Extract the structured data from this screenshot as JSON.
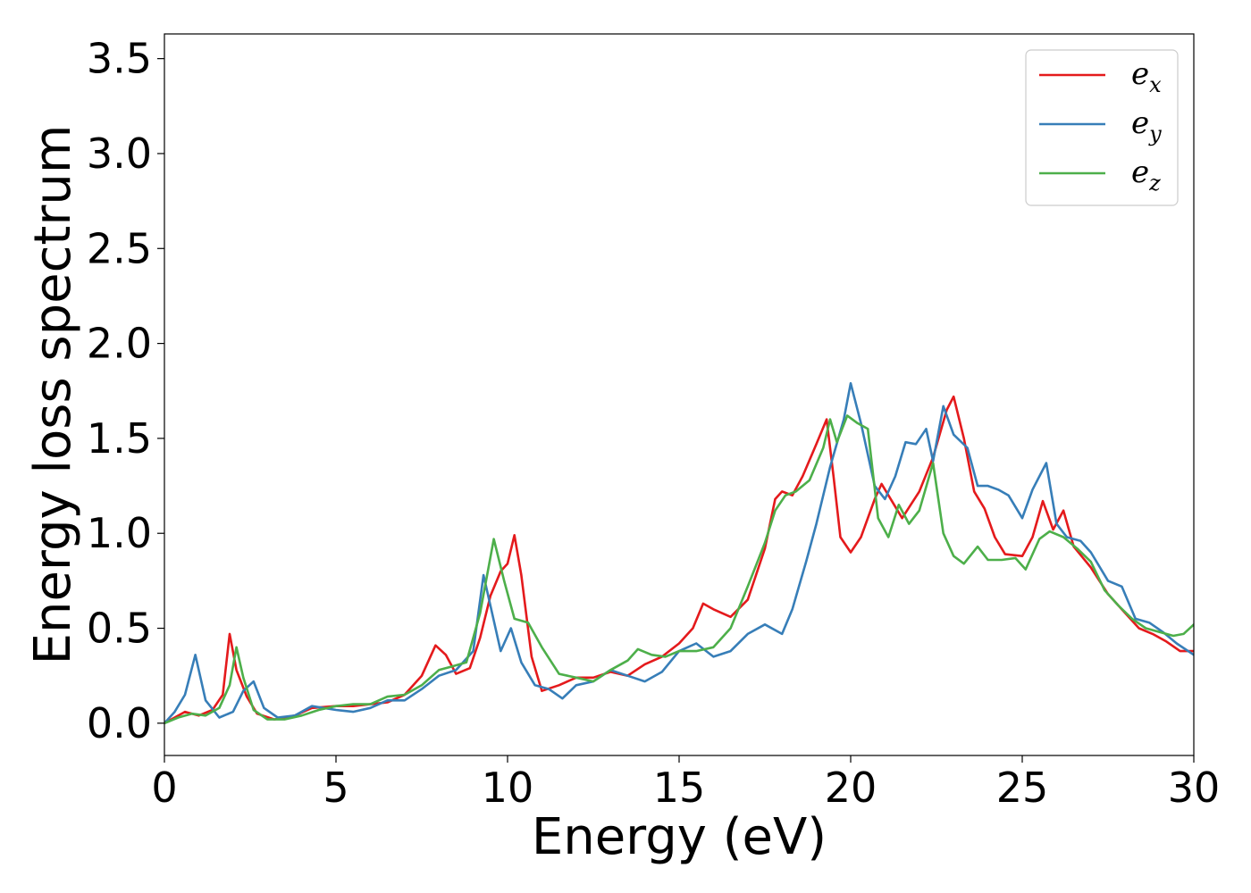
{
  "chart_data": {
    "type": "line",
    "title": "",
    "xlabel": "Energy (eV)",
    "ylabel": "Energy loss spectrum",
    "xlim": [
      0,
      30
    ],
    "ylim": [
      -0.17,
      3.63
    ],
    "xticks": [
      0,
      5,
      10,
      15,
      20,
      25,
      30
    ],
    "xtick_labels": [
      "0",
      "5",
      "10",
      "15",
      "20",
      "25",
      "30"
    ],
    "yticks": [
      0.0,
      0.5,
      1.0,
      1.5,
      2.0,
      2.5,
      3.0,
      3.5
    ],
    "ytick_labels": [
      "0.0",
      "0.5",
      "1.0",
      "1.5",
      "2.0",
      "2.5",
      "3.0",
      "3.5"
    ],
    "grid": false,
    "legend_position": "top-right",
    "series": [
      {
        "name": "e",
        "subscript": "x",
        "color": "#e41a1c",
        "points": [
          [
            0,
            0
          ],
          [
            0.3,
            0.03
          ],
          [
            0.6,
            0.06
          ],
          [
            1.0,
            0.04
          ],
          [
            1.4,
            0.07
          ],
          [
            1.7,
            0.15
          ],
          [
            1.9,
            0.47
          ],
          [
            2.1,
            0.28
          ],
          [
            2.4,
            0.14
          ],
          [
            2.7,
            0.05
          ],
          [
            3.2,
            0.02
          ],
          [
            3.8,
            0.04
          ],
          [
            4.3,
            0.08
          ],
          [
            5.0,
            0.09
          ],
          [
            5.5,
            0.09
          ],
          [
            6.0,
            0.1
          ],
          [
            6.5,
            0.11
          ],
          [
            7.0,
            0.15
          ],
          [
            7.5,
            0.25
          ],
          [
            7.9,
            0.41
          ],
          [
            8.2,
            0.36
          ],
          [
            8.5,
            0.26
          ],
          [
            8.9,
            0.29
          ],
          [
            9.2,
            0.45
          ],
          [
            9.5,
            0.67
          ],
          [
            9.8,
            0.8
          ],
          [
            10.0,
            0.84
          ],
          [
            10.2,
            0.99
          ],
          [
            10.4,
            0.78
          ],
          [
            10.7,
            0.35
          ],
          [
            11.0,
            0.17
          ],
          [
            11.5,
            0.2
          ],
          [
            12.0,
            0.24
          ],
          [
            12.5,
            0.24
          ],
          [
            13.0,
            0.27
          ],
          [
            13.5,
            0.25
          ],
          [
            14.0,
            0.31
          ],
          [
            14.5,
            0.35
          ],
          [
            15.0,
            0.42
          ],
          [
            15.4,
            0.5
          ],
          [
            15.7,
            0.63
          ],
          [
            16.0,
            0.6
          ],
          [
            16.5,
            0.56
          ],
          [
            17.0,
            0.65
          ],
          [
            17.5,
            0.92
          ],
          [
            17.8,
            1.18
          ],
          [
            18.0,
            1.22
          ],
          [
            18.3,
            1.2
          ],
          [
            18.6,
            1.3
          ],
          [
            19.0,
            1.47
          ],
          [
            19.3,
            1.6
          ],
          [
            19.5,
            1.3
          ],
          [
            19.7,
            0.98
          ],
          [
            20.0,
            0.9
          ],
          [
            20.3,
            0.98
          ],
          [
            20.7,
            1.18
          ],
          [
            20.9,
            1.26
          ],
          [
            21.2,
            1.17
          ],
          [
            21.5,
            1.08
          ],
          [
            22.0,
            1.22
          ],
          [
            22.4,
            1.4
          ],
          [
            22.8,
            1.65
          ],
          [
            23.0,
            1.72
          ],
          [
            23.3,
            1.5
          ],
          [
            23.6,
            1.22
          ],
          [
            23.9,
            1.13
          ],
          [
            24.2,
            0.98
          ],
          [
            24.5,
            0.89
          ],
          [
            25.0,
            0.88
          ],
          [
            25.3,
            0.98
          ],
          [
            25.6,
            1.17
          ],
          [
            25.9,
            1.02
          ],
          [
            26.2,
            1.12
          ],
          [
            26.5,
            0.93
          ],
          [
            27.0,
            0.82
          ],
          [
            27.5,
            0.68
          ],
          [
            28.0,
            0.58
          ],
          [
            28.4,
            0.5
          ],
          [
            28.8,
            0.47
          ],
          [
            29.2,
            0.43
          ],
          [
            29.6,
            0.38
          ],
          [
            30.0,
            0.38
          ]
        ]
      },
      {
        "name": "e",
        "subscript": "y",
        "color": "#377eb8",
        "points": [
          [
            0,
            0
          ],
          [
            0.3,
            0.06
          ],
          [
            0.6,
            0.15
          ],
          [
            0.9,
            0.36
          ],
          [
            1.2,
            0.12
          ],
          [
            1.6,
            0.03
          ],
          [
            2.0,
            0.06
          ],
          [
            2.3,
            0.17
          ],
          [
            2.6,
            0.22
          ],
          [
            2.9,
            0.08
          ],
          [
            3.3,
            0.03
          ],
          [
            3.8,
            0.04
          ],
          [
            4.3,
            0.09
          ],
          [
            5.0,
            0.07
          ],
          [
            5.5,
            0.06
          ],
          [
            6.0,
            0.08
          ],
          [
            6.5,
            0.12
          ],
          [
            7.0,
            0.12
          ],
          [
            7.5,
            0.18
          ],
          [
            8.0,
            0.25
          ],
          [
            8.5,
            0.28
          ],
          [
            9.0,
            0.38
          ],
          [
            9.3,
            0.78
          ],
          [
            9.5,
            0.62
          ],
          [
            9.8,
            0.38
          ],
          [
            10.1,
            0.5
          ],
          [
            10.4,
            0.32
          ],
          [
            10.8,
            0.2
          ],
          [
            11.2,
            0.18
          ],
          [
            11.6,
            0.13
          ],
          [
            12.0,
            0.2
          ],
          [
            12.5,
            0.22
          ],
          [
            13.0,
            0.28
          ],
          [
            13.5,
            0.25
          ],
          [
            14.0,
            0.22
          ],
          [
            14.5,
            0.27
          ],
          [
            15.0,
            0.38
          ],
          [
            15.5,
            0.42
          ],
          [
            16.0,
            0.35
          ],
          [
            16.5,
            0.38
          ],
          [
            17.0,
            0.47
          ],
          [
            17.5,
            0.52
          ],
          [
            18.0,
            0.47
          ],
          [
            18.3,
            0.6
          ],
          [
            18.7,
            0.85
          ],
          [
            19.0,
            1.05
          ],
          [
            19.4,
            1.35
          ],
          [
            19.8,
            1.6
          ],
          [
            20.0,
            1.79
          ],
          [
            20.3,
            1.58
          ],
          [
            20.7,
            1.25
          ],
          [
            21.0,
            1.18
          ],
          [
            21.3,
            1.3
          ],
          [
            21.6,
            1.48
          ],
          [
            21.9,
            1.47
          ],
          [
            22.2,
            1.55
          ],
          [
            22.4,
            1.38
          ],
          [
            22.7,
            1.67
          ],
          [
            23.0,
            1.52
          ],
          [
            23.4,
            1.45
          ],
          [
            23.7,
            1.25
          ],
          [
            24.0,
            1.25
          ],
          [
            24.3,
            1.23
          ],
          [
            24.6,
            1.2
          ],
          [
            25.0,
            1.08
          ],
          [
            25.3,
            1.23
          ],
          [
            25.7,
            1.37
          ],
          [
            26.0,
            1.05
          ],
          [
            26.3,
            0.98
          ],
          [
            26.7,
            0.96
          ],
          [
            27.0,
            0.9
          ],
          [
            27.5,
            0.75
          ],
          [
            27.9,
            0.72
          ],
          [
            28.3,
            0.55
          ],
          [
            28.7,
            0.53
          ],
          [
            29.1,
            0.48
          ],
          [
            29.5,
            0.42
          ],
          [
            30.0,
            0.36
          ]
        ]
      },
      {
        "name": "e",
        "subscript": "z",
        "color": "#4daf4a",
        "points": [
          [
            0,
            0
          ],
          [
            0.4,
            0.03
          ],
          [
            0.8,
            0.05
          ],
          [
            1.2,
            0.04
          ],
          [
            1.6,
            0.08
          ],
          [
            1.9,
            0.2
          ],
          [
            2.1,
            0.4
          ],
          [
            2.3,
            0.24
          ],
          [
            2.6,
            0.07
          ],
          [
            3.0,
            0.02
          ],
          [
            3.5,
            0.02
          ],
          [
            4.0,
            0.04
          ],
          [
            4.5,
            0.07
          ],
          [
            5.0,
            0.09
          ],
          [
            5.5,
            0.1
          ],
          [
            6.0,
            0.1
          ],
          [
            6.5,
            0.14
          ],
          [
            7.0,
            0.15
          ],
          [
            7.5,
            0.2
          ],
          [
            8.0,
            0.28
          ],
          [
            8.4,
            0.3
          ],
          [
            8.8,
            0.32
          ],
          [
            9.2,
            0.58
          ],
          [
            9.6,
            0.97
          ],
          [
            9.9,
            0.75
          ],
          [
            10.2,
            0.55
          ],
          [
            10.6,
            0.53
          ],
          [
            11.0,
            0.4
          ],
          [
            11.5,
            0.26
          ],
          [
            12.0,
            0.24
          ],
          [
            12.5,
            0.22
          ],
          [
            13.0,
            0.28
          ],
          [
            13.5,
            0.33
          ],
          [
            13.8,
            0.39
          ],
          [
            14.2,
            0.36
          ],
          [
            14.6,
            0.35
          ],
          [
            15.0,
            0.38
          ],
          [
            15.5,
            0.38
          ],
          [
            16.0,
            0.4
          ],
          [
            16.5,
            0.5
          ],
          [
            17.0,
            0.72
          ],
          [
            17.5,
            0.95
          ],
          [
            17.8,
            1.12
          ],
          [
            18.1,
            1.2
          ],
          [
            18.4,
            1.22
          ],
          [
            18.8,
            1.28
          ],
          [
            19.2,
            1.45
          ],
          [
            19.4,
            1.6
          ],
          [
            19.6,
            1.48
          ],
          [
            19.9,
            1.62
          ],
          [
            20.2,
            1.58
          ],
          [
            20.5,
            1.55
          ],
          [
            20.8,
            1.08
          ],
          [
            21.1,
            0.98
          ],
          [
            21.4,
            1.15
          ],
          [
            21.7,
            1.05
          ],
          [
            22.0,
            1.12
          ],
          [
            22.4,
            1.37
          ],
          [
            22.7,
            1.0
          ],
          [
            23.0,
            0.88
          ],
          [
            23.3,
            0.84
          ],
          [
            23.7,
            0.93
          ],
          [
            24.0,
            0.86
          ],
          [
            24.4,
            0.86
          ],
          [
            24.8,
            0.87
          ],
          [
            25.1,
            0.81
          ],
          [
            25.5,
            0.97
          ],
          [
            25.8,
            1.01
          ],
          [
            26.2,
            0.98
          ],
          [
            26.6,
            0.92
          ],
          [
            27.0,
            0.85
          ],
          [
            27.4,
            0.7
          ],
          [
            27.8,
            0.62
          ],
          [
            28.2,
            0.55
          ],
          [
            28.6,
            0.5
          ],
          [
            29.0,
            0.48
          ],
          [
            29.4,
            0.46
          ],
          [
            29.7,
            0.47
          ],
          [
            30.0,
            0.52
          ]
        ]
      }
    ]
  }
}
